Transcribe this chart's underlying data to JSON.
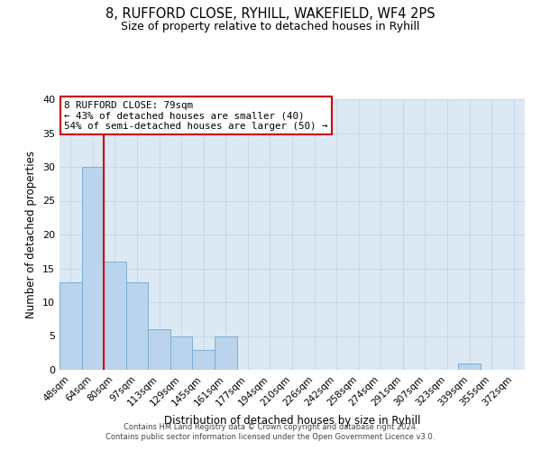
{
  "title_line1": "8, RUFFORD CLOSE, RYHILL, WAKEFIELD, WF4 2PS",
  "title_line2": "Size of property relative to detached houses in Ryhill",
  "xlabel": "Distribution of detached houses by size in Ryhill",
  "ylabel": "Number of detached properties",
  "bin_labels": [
    "48sqm",
    "64sqm",
    "80sqm",
    "97sqm",
    "113sqm",
    "129sqm",
    "145sqm",
    "161sqm",
    "177sqm",
    "194sqm",
    "210sqm",
    "226sqm",
    "242sqm",
    "258sqm",
    "274sqm",
    "291sqm",
    "307sqm",
    "323sqm",
    "339sqm",
    "355sqm",
    "372sqm"
  ],
  "bin_values": [
    13,
    30,
    16,
    13,
    6,
    5,
    3,
    5,
    0,
    0,
    0,
    0,
    0,
    0,
    0,
    0,
    0,
    0,
    1,
    0,
    0
  ],
  "bar_color": "#bad4ed",
  "bar_edge_color": "#7bafd4",
  "vline_color": "#cc0000",
  "vline_index": 1.5,
  "annotation_text": "8 RUFFORD CLOSE: 79sqm\n← 43% of detached houses are smaller (40)\n54% of semi-detached houses are larger (50) →",
  "annotation_box_edge_color": "#cc0000",
  "annotation_box_face_color": "#ffffff",
  "ylim": [
    0,
    40
  ],
  "yticks": [
    0,
    5,
    10,
    15,
    20,
    25,
    30,
    35,
    40
  ],
  "grid_color": "#c8d8e8",
  "background_color": "#dce9f5",
  "footer_line1": "Contains HM Land Registry data © Crown copyright and database right 2024.",
  "footer_line2": "Contains public sector information licensed under the Open Government Licence v3.0."
}
